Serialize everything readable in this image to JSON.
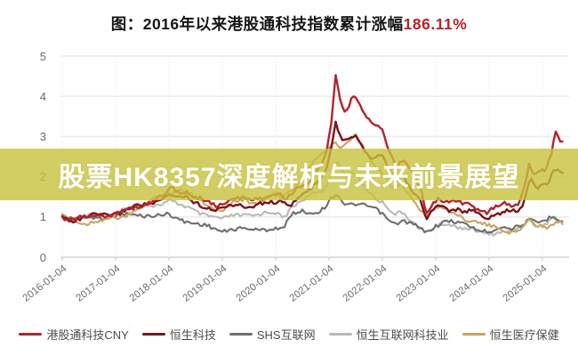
{
  "title": {
    "text": "图：2016年以来港股通科技指数累计涨幅",
    "highlight": "186.11%",
    "highlight_color": "#b5232c"
  },
  "banner": {
    "text": "股票HK8357深度解析与未来前景展望",
    "bg_color": "#c8c23c",
    "bg_opacity": 0.8,
    "text_color": "#ffffff"
  },
  "chart_data": {
    "type": "line",
    "title": "2016年以来港股通科技指数累计涨幅",
    "cumulative_gain_label": "186.11%",
    "grid": true,
    "legend_position": "bottom",
    "ylim": [
      0,
      5
    ],
    "yticks": [
      "0",
      "1",
      "2",
      "3",
      "4",
      "5"
    ],
    "xticks": [
      "2016-01-04",
      "2017-01-04",
      "2018-01-04",
      "2019-01-04",
      "2020-01-04",
      "2021-01-04",
      "2022-01-04",
      "2023-01-04",
      "2024-01-04",
      "2025-01-04"
    ],
    "x_unit": "years since 2016-01-04",
    "grid_color": "#ececec",
    "axis_color": "#c9c9c9",
    "series": [
      {
        "name": "恒生互联网科技业",
        "color": "#b9b9b9",
        "points": [
          [
            0,
            1.0
          ],
          [
            0.2,
            0.95
          ],
          [
            0.4,
            1.0
          ],
          [
            0.6,
            1.05
          ],
          [
            0.8,
            1.08
          ],
          [
            1.0,
            1.12
          ],
          [
            1.2,
            1.2
          ],
          [
            1.4,
            1.28
          ],
          [
            1.6,
            1.3
          ],
          [
            1.8,
            1.32
          ],
          [
            2.0,
            1.4
          ],
          [
            2.2,
            1.28
          ],
          [
            2.4,
            1.22
          ],
          [
            2.6,
            1.1
          ],
          [
            2.8,
            1.0
          ],
          [
            3.0,
            0.92
          ],
          [
            3.2,
            1.05
          ],
          [
            3.4,
            1.08
          ],
          [
            3.6,
            1.02
          ],
          [
            3.8,
            1.08
          ],
          [
            4.0,
            1.12
          ],
          [
            4.15,
            1.0
          ],
          [
            4.3,
            1.25
          ],
          [
            4.5,
            1.4
          ],
          [
            4.7,
            1.55
          ],
          [
            4.9,
            1.7
          ],
          [
            5.05,
            2.1
          ],
          [
            5.15,
            2.35
          ],
          [
            5.3,
            2.0
          ],
          [
            5.45,
            2.1
          ],
          [
            5.6,
            1.9
          ],
          [
            5.75,
            1.65
          ],
          [
            5.9,
            1.45
          ],
          [
            6.05,
            1.3
          ],
          [
            6.2,
            1.05
          ],
          [
            6.4,
            1.12
          ],
          [
            6.6,
            0.85
          ],
          [
            6.82,
            0.58
          ],
          [
            7.0,
            0.75
          ],
          [
            7.2,
            0.85
          ],
          [
            7.4,
            0.78
          ],
          [
            7.6,
            0.7
          ],
          [
            7.8,
            0.62
          ],
          [
            8.0,
            0.58
          ],
          [
            8.2,
            0.65
          ],
          [
            8.4,
            0.62
          ],
          [
            8.6,
            0.75
          ],
          [
            8.75,
            0.92
          ],
          [
            8.9,
            0.8
          ],
          [
            9.05,
            0.82
          ],
          [
            9.2,
            1.0
          ],
          [
            9.3,
            0.88
          ],
          [
            9.4,
            0.85
          ]
        ]
      },
      {
        "name": "SHS互联网",
        "color": "#6e6e6e",
        "points": [
          [
            0,
            1.0
          ],
          [
            0.2,
            0.96
          ],
          [
            0.4,
            0.98
          ],
          [
            0.6,
            1.0
          ],
          [
            0.8,
            1.0
          ],
          [
            1.0,
            1.02
          ],
          [
            1.2,
            1.05
          ],
          [
            1.4,
            1.06
          ],
          [
            1.6,
            1.05
          ],
          [
            1.8,
            1.02
          ],
          [
            2.0,
            1.05
          ],
          [
            2.2,
            0.95
          ],
          [
            2.4,
            0.88
          ],
          [
            2.6,
            0.8
          ],
          [
            2.8,
            0.72
          ],
          [
            3.0,
            0.65
          ],
          [
            3.2,
            0.72
          ],
          [
            3.4,
            0.7
          ],
          [
            3.6,
            0.66
          ],
          [
            3.8,
            0.7
          ],
          [
            4.0,
            0.75
          ],
          [
            4.15,
            0.7
          ],
          [
            4.3,
            1.05
          ],
          [
            4.5,
            1.15
          ],
          [
            4.7,
            1.12
          ],
          [
            4.9,
            1.2
          ],
          [
            5.05,
            1.45
          ],
          [
            5.15,
            1.55
          ],
          [
            5.3,
            1.3
          ],
          [
            5.5,
            1.35
          ],
          [
            5.7,
            1.28
          ],
          [
            5.9,
            1.15
          ],
          [
            6.05,
            1.0
          ],
          [
            6.2,
            0.85
          ],
          [
            6.4,
            0.92
          ],
          [
            6.6,
            0.78
          ],
          [
            6.82,
            0.6
          ],
          [
            7.0,
            0.8
          ],
          [
            7.2,
            0.92
          ],
          [
            7.4,
            0.85
          ],
          [
            7.6,
            0.78
          ],
          [
            7.8,
            0.7
          ],
          [
            8.0,
            0.65
          ],
          [
            8.2,
            0.72
          ],
          [
            8.4,
            0.7
          ],
          [
            8.6,
            0.82
          ],
          [
            8.75,
            0.95
          ],
          [
            8.9,
            0.85
          ],
          [
            9.05,
            0.88
          ],
          [
            9.2,
            1.02
          ],
          [
            9.3,
            0.95
          ],
          [
            9.4,
            0.92
          ]
        ]
      },
      {
        "name": "恒生医疗保健",
        "color": "#c8a45f",
        "points": [
          [
            0,
            1.0
          ],
          [
            0.2,
            0.88
          ],
          [
            0.4,
            0.85
          ],
          [
            0.6,
            0.9
          ],
          [
            0.8,
            0.92
          ],
          [
            1.0,
            0.95
          ],
          [
            1.2,
            1.05
          ],
          [
            1.5,
            1.25
          ],
          [
            1.8,
            1.5
          ],
          [
            2.0,
            1.62
          ],
          [
            2.2,
            1.68
          ],
          [
            2.4,
            1.55
          ],
          [
            2.6,
            1.4
          ],
          [
            2.8,
            1.25
          ],
          [
            3.0,
            1.18
          ],
          [
            3.2,
            1.35
          ],
          [
            3.4,
            1.42
          ],
          [
            3.6,
            1.38
          ],
          [
            3.8,
            1.45
          ],
          [
            4.0,
            1.55
          ],
          [
            4.15,
            1.48
          ],
          [
            4.3,
            1.7
          ],
          [
            4.5,
            2.0
          ],
          [
            4.7,
            2.35
          ],
          [
            4.9,
            2.55
          ],
          [
            5.1,
            2.9
          ],
          [
            5.2,
            2.75
          ],
          [
            5.35,
            2.85
          ],
          [
            5.5,
            3.0
          ],
          [
            5.6,
            2.8
          ],
          [
            5.75,
            2.45
          ],
          [
            5.9,
            2.2
          ],
          [
            6.05,
            2.05
          ],
          [
            6.2,
            1.7
          ],
          [
            6.35,
            1.8
          ],
          [
            6.5,
            1.55
          ],
          [
            6.65,
            1.3
          ],
          [
            6.82,
            1.05
          ],
          [
            6.95,
            1.2
          ],
          [
            7.1,
            1.25
          ],
          [
            7.3,
            1.1
          ],
          [
            7.5,
            1.0
          ],
          [
            7.7,
            0.92
          ],
          [
            7.9,
            0.8
          ],
          [
            8.1,
            0.72
          ],
          [
            8.3,
            0.68
          ],
          [
            8.5,
            0.62
          ],
          [
            8.65,
            0.78
          ],
          [
            8.75,
            0.88
          ],
          [
            8.9,
            0.78
          ],
          [
            9.05,
            0.75
          ],
          [
            9.2,
            0.85
          ],
          [
            9.3,
            0.92
          ],
          [
            9.4,
            0.8
          ]
        ]
      },
      {
        "name": "恒生科技",
        "color": "#7a151a",
        "points": [
          [
            0,
            1.0
          ],
          [
            0.2,
            0.93
          ],
          [
            0.4,
            0.98
          ],
          [
            0.6,
            1.03
          ],
          [
            0.8,
            1.04
          ],
          [
            1.0,
            1.1
          ],
          [
            1.2,
            1.18
          ],
          [
            1.4,
            1.26
          ],
          [
            1.6,
            1.32
          ],
          [
            1.8,
            1.4
          ],
          [
            2.0,
            1.55
          ],
          [
            2.1,
            1.48
          ],
          [
            2.3,
            1.5
          ],
          [
            2.5,
            1.38
          ],
          [
            2.7,
            1.25
          ],
          [
            2.9,
            1.14
          ],
          [
            3.1,
            1.28
          ],
          [
            3.3,
            1.32
          ],
          [
            3.5,
            1.25
          ],
          [
            3.7,
            1.3
          ],
          [
            3.9,
            1.35
          ],
          [
            4.1,
            1.42
          ],
          [
            4.25,
            1.28
          ],
          [
            4.4,
            1.45
          ],
          [
            4.6,
            1.6
          ],
          [
            4.8,
            1.9
          ],
          [
            4.95,
            2.2
          ],
          [
            5.05,
            2.8
          ],
          [
            5.12,
            3.35
          ],
          [
            5.25,
            2.9
          ],
          [
            5.4,
            2.95
          ],
          [
            5.5,
            3.05
          ],
          [
            5.65,
            2.7
          ],
          [
            5.8,
            2.5
          ],
          [
            6.0,
            2.55
          ],
          [
            6.1,
            2.25
          ],
          [
            6.25,
            1.9
          ],
          [
            6.4,
            2.0
          ],
          [
            6.55,
            1.7
          ],
          [
            6.7,
            1.45
          ],
          [
            6.82,
            0.95
          ],
          [
            6.95,
            1.15
          ],
          [
            7.1,
            1.3
          ],
          [
            7.25,
            1.18
          ],
          [
            7.4,
            1.22
          ],
          [
            7.55,
            1.1
          ],
          [
            7.7,
            1.15
          ],
          [
            7.85,
            1.02
          ],
          [
            8.0,
            0.98
          ],
          [
            8.15,
            1.1
          ],
          [
            8.3,
            1.15
          ],
          [
            8.45,
            1.12
          ],
          [
            8.6,
            1.15
          ],
          [
            8.7,
            1.65
          ],
          [
            8.78,
            1.95
          ],
          [
            8.88,
            1.75
          ],
          [
            9.0,
            1.8
          ],
          [
            9.1,
            1.85
          ],
          [
            9.2,
            2.1
          ],
          [
            9.3,
            2.2
          ],
          [
            9.4,
            1.98
          ]
        ]
      },
      {
        "name": "港股通科技CNY",
        "color": "#b5232c",
        "points": [
          [
            0,
            1.0
          ],
          [
            0.15,
            0.9
          ],
          [
            0.3,
            0.95
          ],
          [
            0.5,
            1.0
          ],
          [
            0.7,
            1.06
          ],
          [
            0.9,
            1.05
          ],
          [
            1.1,
            1.12
          ],
          [
            1.3,
            1.22
          ],
          [
            1.5,
            1.3
          ],
          [
            1.7,
            1.4
          ],
          [
            1.9,
            1.52
          ],
          [
            2.05,
            1.72
          ],
          [
            2.2,
            1.58
          ],
          [
            2.35,
            1.64
          ],
          [
            2.5,
            1.5
          ],
          [
            2.7,
            1.38
          ],
          [
            2.9,
            1.26
          ],
          [
            3.1,
            1.42
          ],
          [
            3.3,
            1.48
          ],
          [
            3.5,
            1.4
          ],
          [
            3.7,
            1.47
          ],
          [
            3.9,
            1.52
          ],
          [
            4.05,
            1.6
          ],
          [
            4.2,
            1.42
          ],
          [
            4.35,
            1.62
          ],
          [
            4.5,
            1.78
          ],
          [
            4.65,
            1.95
          ],
          [
            4.8,
            2.2
          ],
          [
            4.95,
            2.55
          ],
          [
            5.05,
            3.4
          ],
          [
            5.12,
            4.55
          ],
          [
            5.2,
            3.9
          ],
          [
            5.3,
            3.55
          ],
          [
            5.45,
            4.05
          ],
          [
            5.55,
            3.9
          ],
          [
            5.7,
            3.5
          ],
          [
            5.85,
            3.25
          ],
          [
            6.0,
            3.15
          ],
          [
            6.1,
            2.75
          ],
          [
            6.25,
            2.3
          ],
          [
            6.4,
            2.45
          ],
          [
            6.55,
            2.1
          ],
          [
            6.7,
            1.75
          ],
          [
            6.82,
            1.1
          ],
          [
            6.95,
            1.35
          ],
          [
            7.05,
            1.5
          ],
          [
            7.2,
            1.38
          ],
          [
            7.35,
            1.42
          ],
          [
            7.5,
            1.3
          ],
          [
            7.65,
            1.35
          ],
          [
            7.8,
            1.18
          ],
          [
            7.95,
            1.12
          ],
          [
            8.1,
            1.25
          ],
          [
            8.25,
            1.32
          ],
          [
            8.4,
            1.28
          ],
          [
            8.55,
            1.3
          ],
          [
            8.68,
            1.9
          ],
          [
            8.75,
            2.3
          ],
          [
            8.85,
            2.05
          ],
          [
            8.95,
            2.1
          ],
          [
            9.05,
            2.15
          ],
          [
            9.15,
            2.45
          ],
          [
            9.25,
            3.12
          ],
          [
            9.32,
            2.95
          ],
          [
            9.4,
            2.86
          ]
        ]
      }
    ],
    "legend_order": [
      "港股通科技CNY",
      "恒生科技",
      "SHS互联网",
      "恒生互联网科技业",
      "恒生医疗保健"
    ]
  }
}
